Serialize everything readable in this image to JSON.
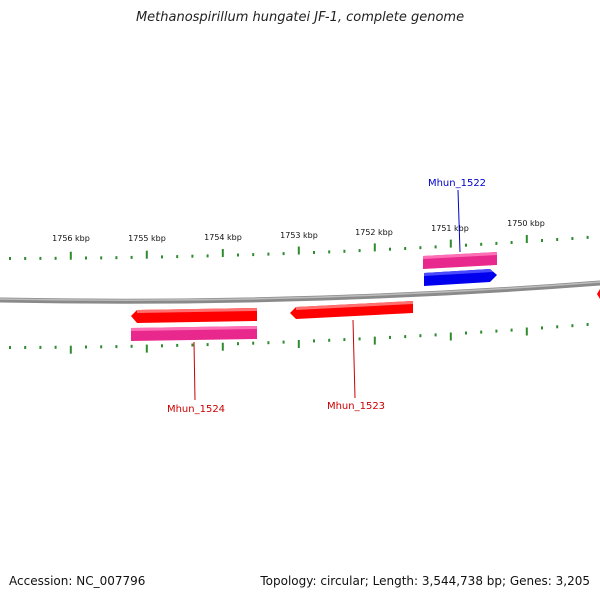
{
  "title": "Methanospirillum hungatei JF-1, complete genome",
  "footer": {
    "accession": "Accession: NC_007796",
    "topology": "Topology: circular; Length: 3,544,738 bp; Genes: 3,205"
  },
  "colors": {
    "backbone": "#888888",
    "ticks": "#2e8b2e",
    "gene_red": "#ff0000",
    "gene_pink": "#e8288c",
    "gene_blue": "#0000ee",
    "label_red": "#cc0000",
    "label_blue": "#0000cc"
  },
  "scale": {
    "unit": "kbp",
    "labels": [
      "1756 kbp",
      "1755 kbp",
      "1754 kbp",
      "1753 kbp",
      "1752 kbp",
      "1751 kbp",
      "1750 kbp"
    ]
  },
  "genes": [
    {
      "label": "Mhun_1522",
      "color": "blue"
    },
    {
      "label": "Mhun_1523",
      "color": "red"
    },
    {
      "label": "Mhun_1524",
      "color": "red"
    }
  ]
}
